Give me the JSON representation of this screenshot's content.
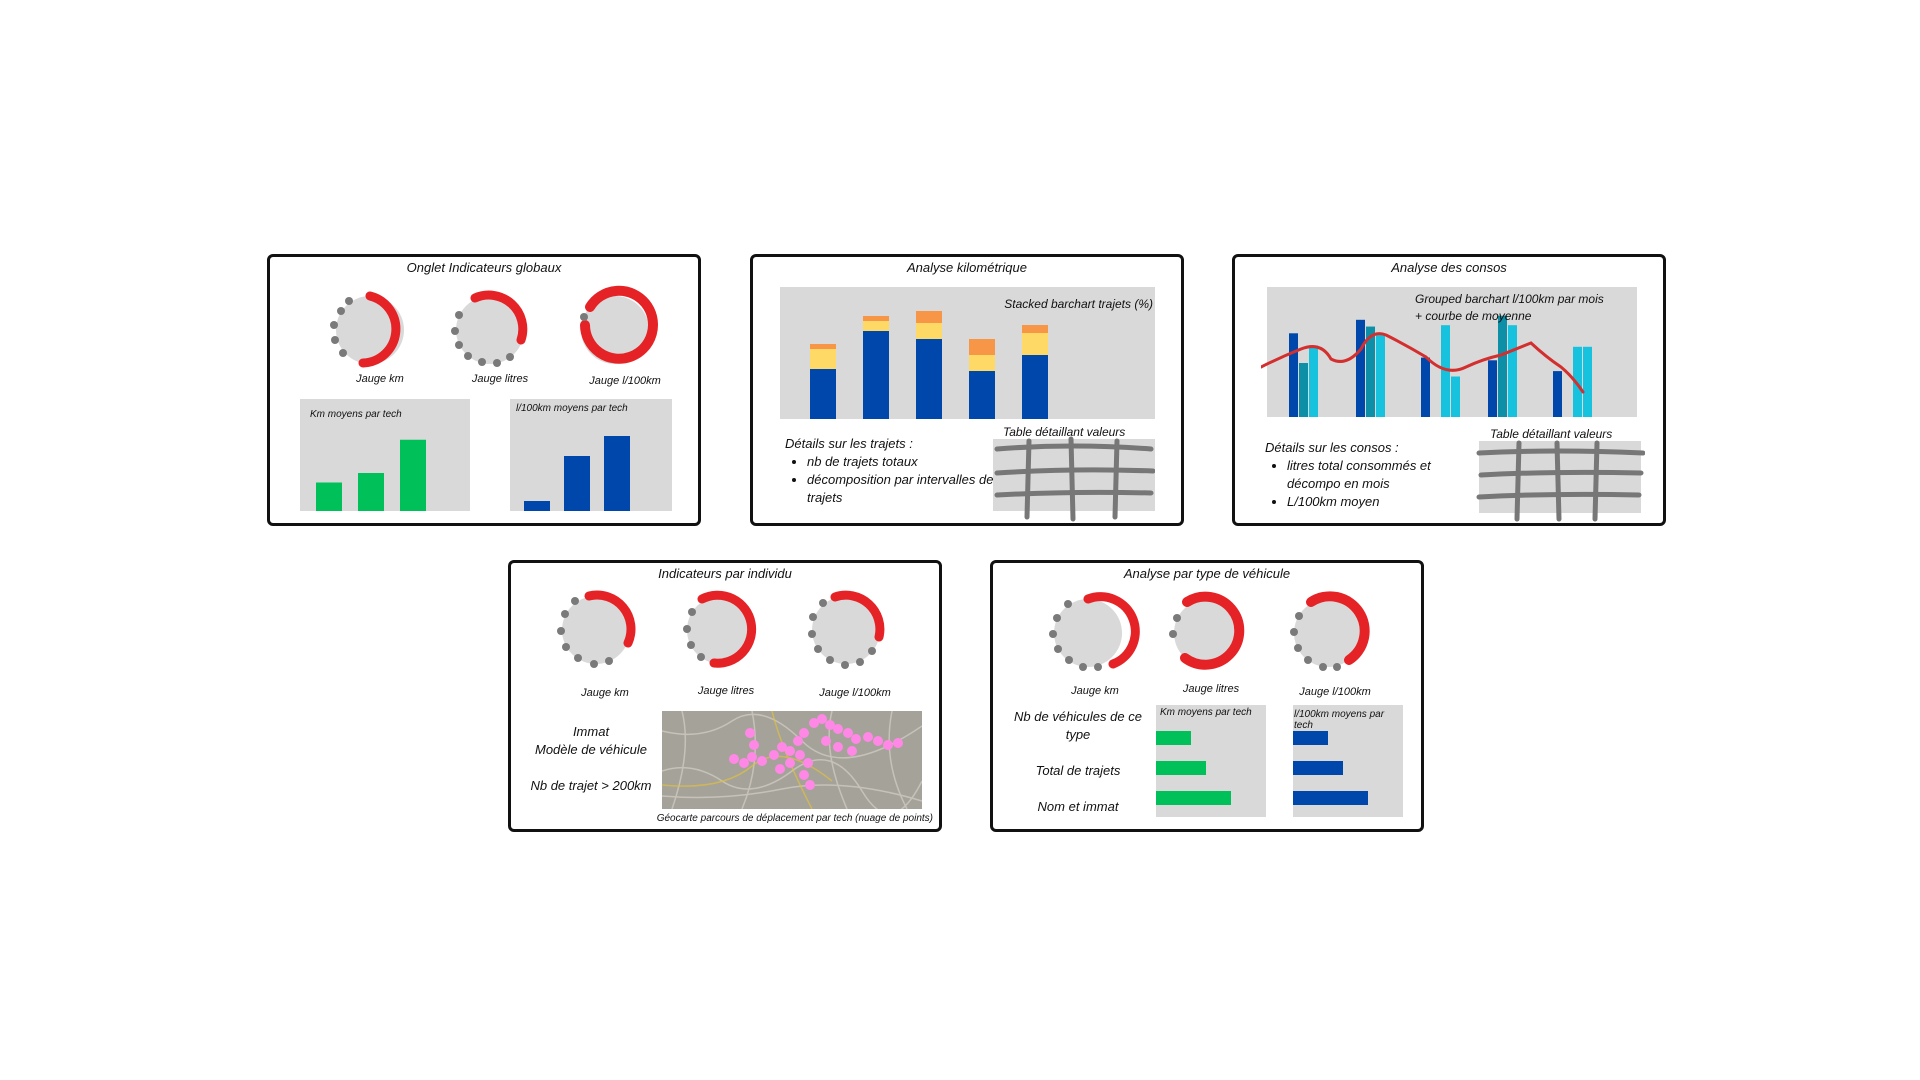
{
  "colors": {
    "gauge_bg": "#d9d9d9",
    "gauge_arc": "#e52226",
    "gauge_dots": "#7a7a7a",
    "bar_green": "#00c05a",
    "bar_blue": "#0047ab",
    "bar_yellow": "#ffd966",
    "bar_orange": "#f79646",
    "bar_teal": "#0e8fa8",
    "bar_cyan": "#16c2dd",
    "line_red": "#d32f2f",
    "points_pink": "#ff88e6"
  },
  "panel1": {
    "title": "Onglet Indicateurs globaux",
    "gauges": [
      "Jauge km",
      "Jauge litres",
      "Jauge l/100km"
    ],
    "chart_left_title": "Km moyens par tech",
    "chart_right_title": "l/100km moyens par tech"
  },
  "panel2": {
    "title": "Analyse kilométrique",
    "chart_caption": "Stacked barchart trajets (%)",
    "details_title": "Détails sur les trajets :",
    "details_items": [
      "nb de trajets totaux",
      "décomposition par intervalles de trajets"
    ],
    "table_caption": "Table détaillant valeurs"
  },
  "panel3": {
    "title": "Analyse des consos",
    "chart_caption_1": "Grouped barchart  l/100km par mois",
    "chart_caption_2": "+ courbe de moyenne",
    "details_title": "Détails sur les consos :",
    "details_items": [
      "litres total consommés et décompo en mois",
      "L/100km moyen"
    ],
    "table_caption": "Table détaillant valeurs"
  },
  "panel4": {
    "title": "Indicateurs par individu",
    "gauges": [
      "Jauge km",
      "Jauge litres",
      "Jauge l/100km"
    ],
    "info_line1": "Immat",
    "info_line2": "Modèle de véhicule",
    "info_line3": "Nb de trajet > 200km",
    "map_caption": "Géocarte parcours de déplacement par tech (nuage de points)"
  },
  "panel5": {
    "title": "Analyse par type de véhicule",
    "gauges": [
      "Jauge km",
      "Jauge litres",
      "Jauge l/100km"
    ],
    "label1": "Nb de véhicules de ce type",
    "label2": "Total de trajets",
    "label3": "Nom et immat",
    "chart_left_title": "Km moyens par tech",
    "chart_right_title": "l/100km moyens par tech"
  },
  "chart_data": [
    {
      "type": "bar",
      "id": "p1-km",
      "values": [
        3,
        4,
        7.5
      ]
    },
    {
      "type": "bar",
      "id": "p1-l100",
      "values": [
        1,
        5.5,
        7.5
      ]
    },
    {
      "type": "bar",
      "id": "p2-stacked",
      "series": [
        {
          "values": [
            50,
            88,
            80,
            48,
            64
          ]
        },
        {
          "values": [
            20,
            10,
            16,
            16,
            22
          ]
        },
        {
          "values": [
            5,
            5,
            12,
            16,
            8
          ]
        }
      ]
    },
    {
      "type": "bar",
      "id": "p3-grouped",
      "series": [
        {
          "values": [
            62,
            72,
            44,
            42,
            34
          ]
        },
        {
          "values": [
            40,
            67,
            0,
            75,
            0
          ]
        },
        {
          "values": [
            53,
            62,
            68,
            68,
            52
          ]
        },
        {
          "values": [
            0,
            0,
            30,
            0,
            52
          ]
        }
      ]
    },
    {
      "type": "bar",
      "id": "p5-km",
      "values": [
        3.5,
        5,
        7.5
      ]
    },
    {
      "type": "bar",
      "id": "p5-l100",
      "values": [
        3.5,
        5,
        7.5
      ]
    }
  ]
}
